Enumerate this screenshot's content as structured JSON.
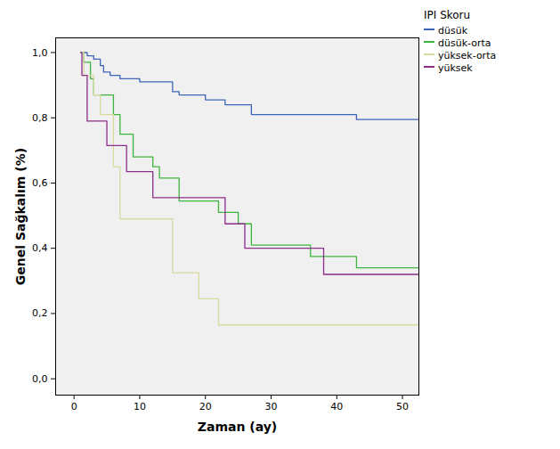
{
  "chart_data": {
    "type": "line",
    "legend_title": "IPI Skoru",
    "xlabel": "Zaman (ay)",
    "ylabel": "Genel Sağkalım (%)",
    "xlim": [
      -2.8,
      52.5
    ],
    "xticks": [
      0,
      10,
      20,
      30,
      40,
      50
    ],
    "ylim": [
      -0.05,
      1.045
    ],
    "yticks": [
      {
        "value": 0,
        "label": "0,0"
      },
      {
        "value": 0.2,
        "label": "0,2"
      },
      {
        "value": 0.4,
        "label": "0,4"
      },
      {
        "value": 0.6,
        "label": "0,6"
      },
      {
        "value": 0.8,
        "label": "0,8"
      },
      {
        "value": 1.0,
        "label": "1,0"
      }
    ],
    "grid": false,
    "legend": "right",
    "line_style": "step",
    "series": [
      {
        "name": "düsük",
        "color": "#3e64b8",
        "x": [
          1,
          2,
          3,
          4,
          4.5,
          5.5,
          7,
          10,
          15,
          16,
          20,
          23,
          27,
          43,
          53
        ],
        "values": [
          1.0,
          0.99,
          0.98,
          0.96,
          0.94,
          0.93,
          0.92,
          0.91,
          0.88,
          0.87,
          0.855,
          0.84,
          0.81,
          0.795,
          0.795
        ]
      },
      {
        "name": "düsük-orta",
        "color": "#3db43d",
        "x": [
          1,
          1.5,
          2.5,
          3,
          6,
          7,
          9,
          12,
          13,
          16,
          22,
          25,
          27,
          36,
          43,
          53
        ],
        "values": [
          1.0,
          0.97,
          0.92,
          0.87,
          0.81,
          0.75,
          0.68,
          0.65,
          0.615,
          0.545,
          0.51,
          0.475,
          0.41,
          0.375,
          0.34,
          0.34
        ]
      },
      {
        "name": "yüksek-orta",
        "color": "#d9d9a0",
        "x": [
          1,
          1.5,
          3,
          4,
          6,
          7,
          15,
          19,
          22,
          53
        ],
        "values": [
          1.0,
          0.93,
          0.87,
          0.81,
          0.65,
          0.49,
          0.325,
          0.245,
          0.165,
          0.165
        ]
      },
      {
        "name": "yüksek",
        "color": "#8b2e8b",
        "x": [
          1,
          1.2,
          2,
          5,
          8,
          12,
          23,
          26,
          38,
          53
        ],
        "values": [
          1.0,
          0.93,
          0.79,
          0.715,
          0.635,
          0.555,
          0.475,
          0.4,
          0.32,
          0.32
        ]
      }
    ]
  }
}
